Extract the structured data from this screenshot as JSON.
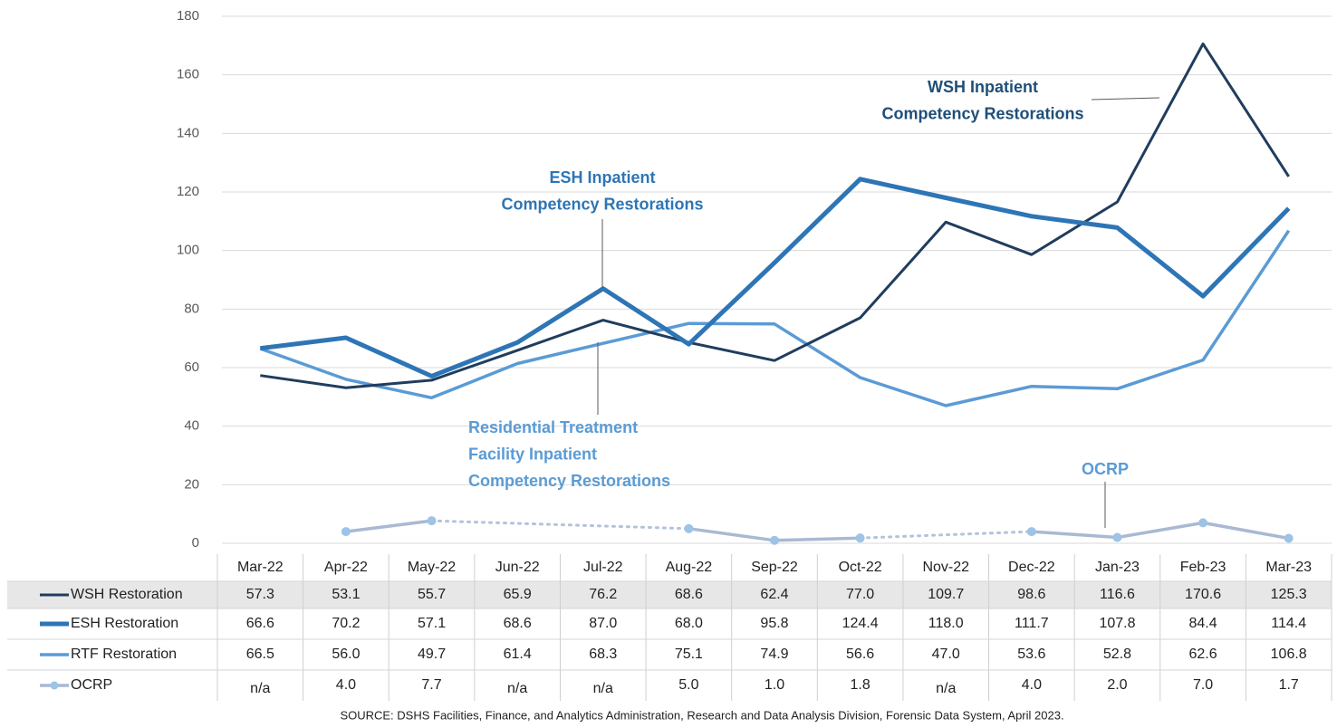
{
  "chart_data": {
    "type": "line",
    "categories": [
      "Mar-22",
      "Apr-22",
      "May-22",
      "Jun-22",
      "Jul-22",
      "Aug-22",
      "Sep-22",
      "Oct-22",
      "Nov-22",
      "Dec-22",
      "Jan-23",
      "Feb-23",
      "Mar-23"
    ],
    "ylim": [
      0,
      180
    ],
    "yticks": [
      0,
      20,
      40,
      60,
      80,
      100,
      120,
      140,
      160,
      180
    ],
    "grid": true,
    "series": [
      {
        "name": "WSH Restoration",
        "color": "#203d5e",
        "values": [
          57.3,
          53.1,
          55.7,
          65.9,
          76.2,
          68.6,
          62.4,
          77.0,
          109.7,
          98.6,
          116.6,
          170.6,
          125.3
        ],
        "value_labels": [
          "57.3",
          "53.1",
          "55.7",
          "65.9",
          "76.2",
          "68.6",
          "62.4",
          "77.0",
          "109.7",
          "98.6",
          "116.6",
          "170.6",
          "125.3"
        ]
      },
      {
        "name": "ESH Restoration",
        "color": "#2e75b6",
        "values": [
          66.6,
          70.2,
          57.1,
          68.6,
          87.0,
          68.0,
          95.8,
          124.4,
          118.0,
          111.7,
          107.8,
          84.4,
          114.4
        ],
        "value_labels": [
          "66.6",
          "70.2",
          "57.1",
          "68.6",
          "87.0",
          "68.0",
          "95.8",
          "124.4",
          "118.0",
          "111.7",
          "107.8",
          "84.4",
          "114.4"
        ]
      },
      {
        "name": "RTF Restoration",
        "color": "#5b9bd5",
        "values": [
          66.5,
          56.0,
          49.7,
          61.4,
          68.3,
          75.1,
          74.9,
          56.6,
          47.0,
          53.6,
          52.8,
          62.6,
          106.8
        ],
        "value_labels": [
          "66.5",
          "56.0",
          "49.7",
          "61.4",
          "68.3",
          "75.1",
          "74.9",
          "56.6",
          "47.0",
          "53.6",
          "52.8",
          "62.6",
          "106.8"
        ]
      },
      {
        "name": "OCRP",
        "color": "#a9b9d3",
        "values": [
          null,
          4.0,
          7.7,
          null,
          null,
          5.0,
          1.0,
          1.8,
          null,
          4.0,
          2.0,
          7.0,
          1.7
        ],
        "value_labels": [
          "n/a",
          "4.0",
          "7.7",
          "n/a",
          "n/a",
          "5.0",
          "1.0",
          "1.8",
          "n/a",
          "4.0",
          "2.0",
          "7.0",
          "1.7"
        ]
      }
    ],
    "annotations": [
      {
        "lines": [
          "WSH Inpatient",
          "Competency Restorations"
        ],
        "color": "#1f4e79"
      },
      {
        "lines": [
          "ESH Inpatient",
          "Competency Restorations"
        ],
        "color": "#2e75b6"
      },
      {
        "lines": [
          "Residential Treatment",
          "Facility Inpatient",
          "Competency Restorations"
        ],
        "color": "#5b9bd5"
      },
      {
        "lines": [
          "OCRP"
        ],
        "color": "#5b9bd5"
      }
    ],
    "source": "SOURCE: DSHS Facilities, Finance, and Analytics Administration, Research and Data Analysis Division, Forensic Data System, April 2023."
  }
}
